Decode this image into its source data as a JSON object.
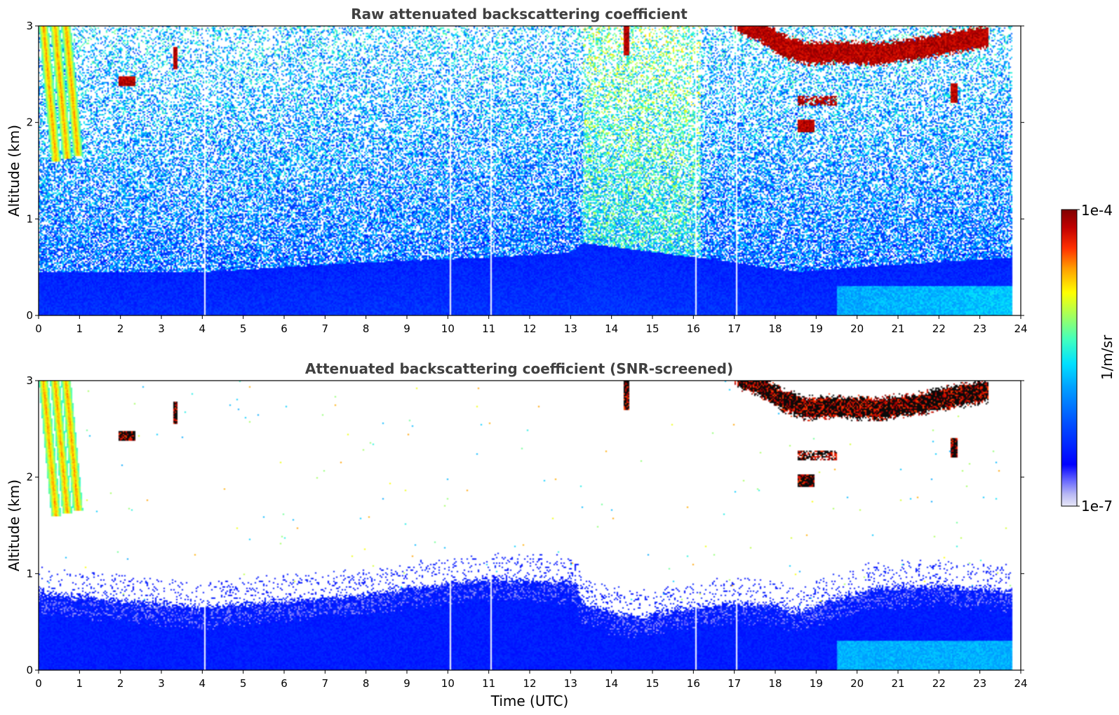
{
  "chart_data": {
    "type": "heatmap",
    "shared_xlabel": "Time (UTC)",
    "colorbar": {
      "label": "1/m/sr",
      "min_label": "1e-7",
      "max_label": "1e-4",
      "scale": "log",
      "range": [
        1e-07,
        0.0001
      ],
      "colormap": [
        "#e8e8f8",
        "#b8b8f4",
        "#6060ff",
        "#0000ff",
        "#0050ff",
        "#00a0ff",
        "#00e0ff",
        "#40ffc0",
        "#a0ff60",
        "#ffff00",
        "#ffa000",
        "#ff3000",
        "#c00000",
        "#800000"
      ]
    },
    "panels": [
      {
        "title": "Raw attenuated backscattering coefficient",
        "ylabel": "Altitude (km)",
        "xlim": [
          0,
          24
        ],
        "ylim": [
          0,
          3
        ],
        "xticks": [
          "0",
          "1",
          "2",
          "3",
          "4",
          "5",
          "6",
          "7",
          "8",
          "9",
          "10",
          "11",
          "12",
          "13",
          "14",
          "15",
          "16",
          "17",
          "18",
          "19",
          "20",
          "21",
          "22",
          "23",
          "24"
        ],
        "yticks": [
          "0",
          "1",
          "2",
          "3"
        ],
        "data_end_time": 23.8,
        "gaps_utc": [
          4.05,
          10.05,
          11.05,
          16.05,
          17.05
        ],
        "boundary_layer_top_km": [
          [
            0,
            0.45
          ],
          [
            4,
            0.45
          ],
          [
            8,
            0.55
          ],
          [
            11,
            0.6
          ],
          [
            13,
            0.65
          ],
          [
            13.3,
            0.75
          ],
          [
            17,
            0.55
          ],
          [
            18.5,
            0.45
          ],
          [
            20,
            0.5
          ],
          [
            23.8,
            0.6
          ]
        ],
        "features": [
          {
            "name": "fall streaks",
            "t": [
              0.0,
              1.3
            ],
            "alt_km": [
              1.6,
              3.0
            ]
          },
          {
            "name": "cloud layer",
            "t": [
              17.0,
              23.2
            ],
            "alt_km": [
              2.5,
              3.0
            ]
          },
          {
            "name": "low cloud patches",
            "t": [
              18.5,
              19.8
            ],
            "alt_km": [
              1.9,
              2.3
            ]
          },
          {
            "name": "elevated noise",
            "t": [
              13.3,
              16.2
            ],
            "alt_km": [
              0.5,
              3.0
            ]
          },
          {
            "name": "enhanced aerosol",
            "t": [
              19.5,
              23.8
            ],
            "alt_km": [
              0.0,
              0.3
            ]
          }
        ]
      },
      {
        "title": "Attenuated backscattering coefficient (SNR-screened)",
        "ylabel": "Altitude (km)",
        "xlabel": "Time (UTC)",
        "xlim": [
          0,
          24
        ],
        "ylim": [
          0,
          3
        ],
        "xticks": [
          "0",
          "1",
          "2",
          "3",
          "4",
          "5",
          "6",
          "7",
          "8",
          "9",
          "10",
          "11",
          "12",
          "13",
          "14",
          "15",
          "16",
          "17",
          "18",
          "19",
          "20",
          "21",
          "22",
          "23",
          "24"
        ],
        "yticks": [
          "0",
          "1",
          "2",
          "3"
        ],
        "screened_top_km": [
          [
            0,
            0.8
          ],
          [
            2,
            0.72
          ],
          [
            4,
            0.65
          ],
          [
            6,
            0.72
          ],
          [
            8,
            0.78
          ],
          [
            9,
            0.85
          ],
          [
            10,
            0.9
          ],
          [
            11,
            0.95
          ],
          [
            12,
            0.93
          ],
          [
            13.1,
            0.92
          ],
          [
            13.3,
            0.7
          ],
          [
            14,
            0.6
          ],
          [
            14.7,
            0.55
          ],
          [
            15.5,
            0.62
          ],
          [
            16,
            0.66
          ],
          [
            17,
            0.7
          ],
          [
            18,
            0.68
          ],
          [
            18.5,
            0.6
          ],
          [
            19.5,
            0.75
          ],
          [
            20.5,
            0.85
          ],
          [
            22,
            0.88
          ],
          [
            23.8,
            0.82
          ]
        ]
      }
    ]
  }
}
